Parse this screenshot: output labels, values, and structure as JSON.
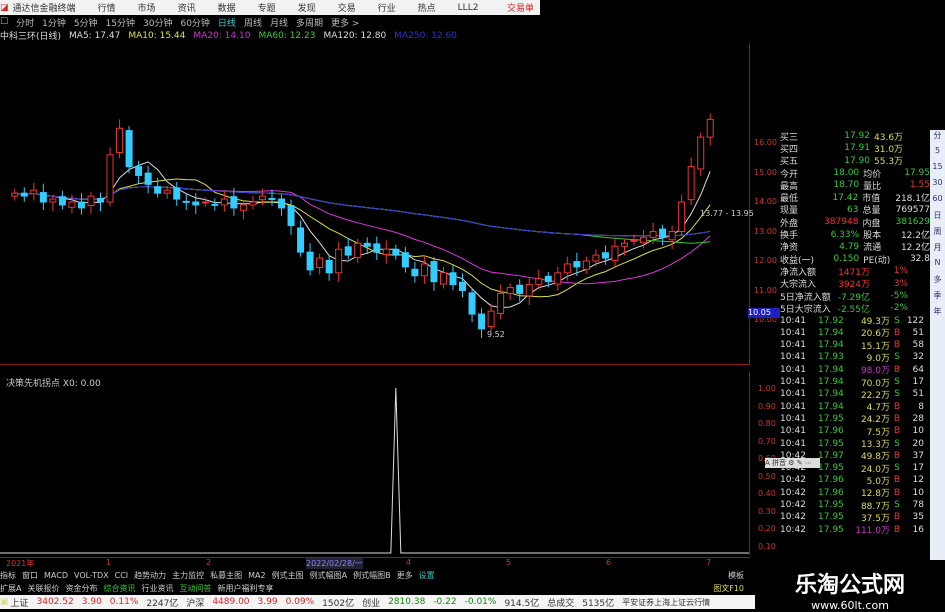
{
  "titlebar": {
    "app": "通达信金融终端",
    "menus": [
      "行情",
      "市场",
      "资讯",
      "数据",
      "专题",
      "发现",
      "交易",
      "行业",
      "热点",
      "LLL2"
    ],
    "trade": "交易单"
  },
  "periods": [
    "☐",
    "分时",
    "1分钟",
    "5分钟",
    "15分钟",
    "30分钟",
    "60分钟",
    "日线",
    "周线",
    "月线",
    "多周期",
    "更多 >"
  ],
  "ma": {
    "stock": "中科三环(日线)",
    "items": [
      {
        "label": "MA5: 17.47",
        "color": "#dddddd"
      },
      {
        "label": "MA10: 15.44",
        "color": "#e0e040"
      },
      {
        "label": "MA20: 14.10",
        "color": "#d030d0"
      },
      {
        "label": "MA60: 12.23",
        "color": "#30d030"
      },
      {
        "label": "MA120: 12.80",
        "color": "#dddddd"
      },
      {
        "label": "MA250: 12.60",
        "color": "#3030d0"
      }
    ]
  },
  "price_axis": [
    "16.00",
    "15.00",
    "14.00",
    "13.00",
    "12.00",
    "11.00",
    "10.00"
  ],
  "current_price_tag": "10.05",
  "annotations": {
    "high_range": "13.77 - 13.95",
    "low": "9.52"
  },
  "chart_data": {
    "type": "candlestick",
    "ylim": [
      9.3,
      17.5
    ],
    "closes": [
      14.3,
      14.2,
      14.4,
      14.0,
      14.1,
      13.9,
      14.0,
      13.8,
      14.2,
      14.0,
      15.6,
      16.5,
      15.2,
      14.9,
      14.6,
      14.3,
      14.4,
      14.1,
      14.0,
      13.9,
      14.0,
      13.9,
      14.1,
      13.8,
      13.9,
      14.0,
      14.2,
      14.1,
      13.8,
      13.2,
      12.3,
      11.7,
      12.1,
      11.6,
      12.4,
      12.2,
      12.6,
      12.5,
      12.3,
      12.4,
      12.2,
      11.8,
      11.5,
      11.9,
      11.3,
      11.6,
      11.2,
      11.0,
      10.2,
      9.7,
      10.3,
      10.9,
      11.1,
      10.9,
      11.2,
      11.4,
      11.3,
      11.6,
      11.9,
      11.8,
      12.0,
      12.2,
      12.1,
      12.5,
      12.6,
      12.7,
      12.8,
      13.0,
      12.8,
      13.0,
      14.0,
      15.2,
      16.2,
      16.8
    ]
  },
  "indicator": {
    "label": "决策先机拐点 X0: 0.00",
    "axis": [
      "1.00",
      "0.90",
      "0.80",
      "0.70",
      "0.60",
      "0.50",
      "0.40",
      "0.30",
      "0.20",
      "0.10"
    ],
    "signal_index": 40
  },
  "quote": {
    "bids": [
      [
        "买三",
        "17.92",
        "43.6万"
      ],
      [
        "买四",
        "17.91",
        "31.0万"
      ],
      [
        "买五",
        "17.90",
        "55.3万"
      ]
    ],
    "stats": [
      [
        "今开",
        "18.00",
        "均价",
        "17.95"
      ],
      [
        "最高",
        "18.70",
        "量比",
        "1.55"
      ],
      [
        "最低",
        "17.42",
        "市值",
        "218.1亿"
      ],
      [
        "现量",
        "63",
        "总量",
        "769577"
      ],
      [
        "外盘",
        "387948",
        "内盘",
        "381629"
      ],
      [
        "换手",
        "6.33%",
        "股本",
        "12.2亿"
      ],
      [
        "净资",
        "4.79",
        "流通",
        "12.2亿"
      ],
      [
        "收益(一)",
        "0.150",
        "PE(动)",
        "32.8"
      ]
    ],
    "flows": [
      [
        "净流入额",
        "1471万",
        "1%"
      ],
      [
        "大宗流入",
        "3924万",
        "3%"
      ],
      [
        "5日净流入额",
        "-7.29亿",
        "-5%"
      ],
      [
        "5日大宗流入",
        "-2.55亿",
        "-2%"
      ]
    ]
  },
  "ticks": [
    [
      "10:41",
      "17.92",
      "49.3万",
      "S",
      "122"
    ],
    [
      "10:41",
      "17.94",
      "20.6万",
      "B",
      "51"
    ],
    [
      "10:41",
      "17.94",
      "15.1万",
      "B",
      "58"
    ],
    [
      "10:41",
      "17.93",
      "9.0万",
      "S",
      "32"
    ],
    [
      "10:41",
      "17.94",
      "98.0万",
      "B",
      "64"
    ],
    [
      "10:41",
      "17.94",
      "70.0万",
      "S",
      "17"
    ],
    [
      "10:41",
      "17.94",
      "22.2万",
      "S",
      "51"
    ],
    [
      "10:41",
      "17.94",
      "4.7万",
      "B",
      "8"
    ],
    [
      "10:41",
      "17.95",
      "24.2万",
      "B",
      "28"
    ],
    [
      "10:41",
      "17.96",
      "7.5万",
      "B",
      "10"
    ],
    [
      "10:41",
      "17.95",
      "13.3万",
      "S",
      "20"
    ],
    [
      "10:42",
      "17.97",
      "49.8万",
      "B",
      "37"
    ],
    [
      "10:42",
      "17.95",
      "24.0万",
      "S",
      "17"
    ],
    [
      "10:42",
      "17.96",
      "5.0万",
      "B",
      "12"
    ],
    [
      "10:42",
      "17.96",
      "12.8万",
      "B",
      "10"
    ],
    [
      "10:42",
      "17.95",
      "88.7万",
      "S",
      "78"
    ],
    [
      "10:42",
      "17.95",
      "37.5万",
      "B",
      "35"
    ],
    [
      "10:42",
      "17.95",
      "111.0万",
      "B",
      "16"
    ]
  ],
  "toolstrip": [
    "分",
    "5",
    "15",
    "30",
    "60",
    "日",
    "周",
    "月",
    "N",
    "多",
    "季",
    "年"
  ],
  "dates": [
    "2021年",
    "1",
    "2",
    "2022/02/28/一",
    "4",
    "5",
    "6",
    "7"
  ],
  "tabs1": [
    "指标",
    "窗口",
    "MACD",
    "VOL-TDX",
    "CCI",
    "趋势动力",
    "主力监控",
    "私募主图",
    "MA2",
    "例式主图",
    "例式幅图A",
    "例式幅图B",
    "更多",
    "设置"
  ],
  "tabs1_right": "模板",
  "tabs2": [
    "扩展A",
    "关联报价",
    "资金分布",
    "综合资讯",
    "行业资讯",
    "互动问答",
    "新用户福利专享"
  ],
  "tabs2_right": "图文F10",
  "status": {
    "sh": [
      "上证",
      "3402.52",
      "3.90",
      "0.11%",
      "2247亿"
    ],
    "sz": [
      "沪深",
      "4489.00",
      "3.99",
      "0.09%",
      "1502亿"
    ],
    "cy": [
      "创业",
      "2810.38",
      "-0.22",
      "-0.01%",
      "914.5亿"
    ],
    "total": [
      "总成交",
      "5135亿"
    ],
    "news": "平安证券上海上证云行情"
  },
  "watermark": {
    "title": "乐淘公式网",
    "url": "www.60lt.com"
  }
}
